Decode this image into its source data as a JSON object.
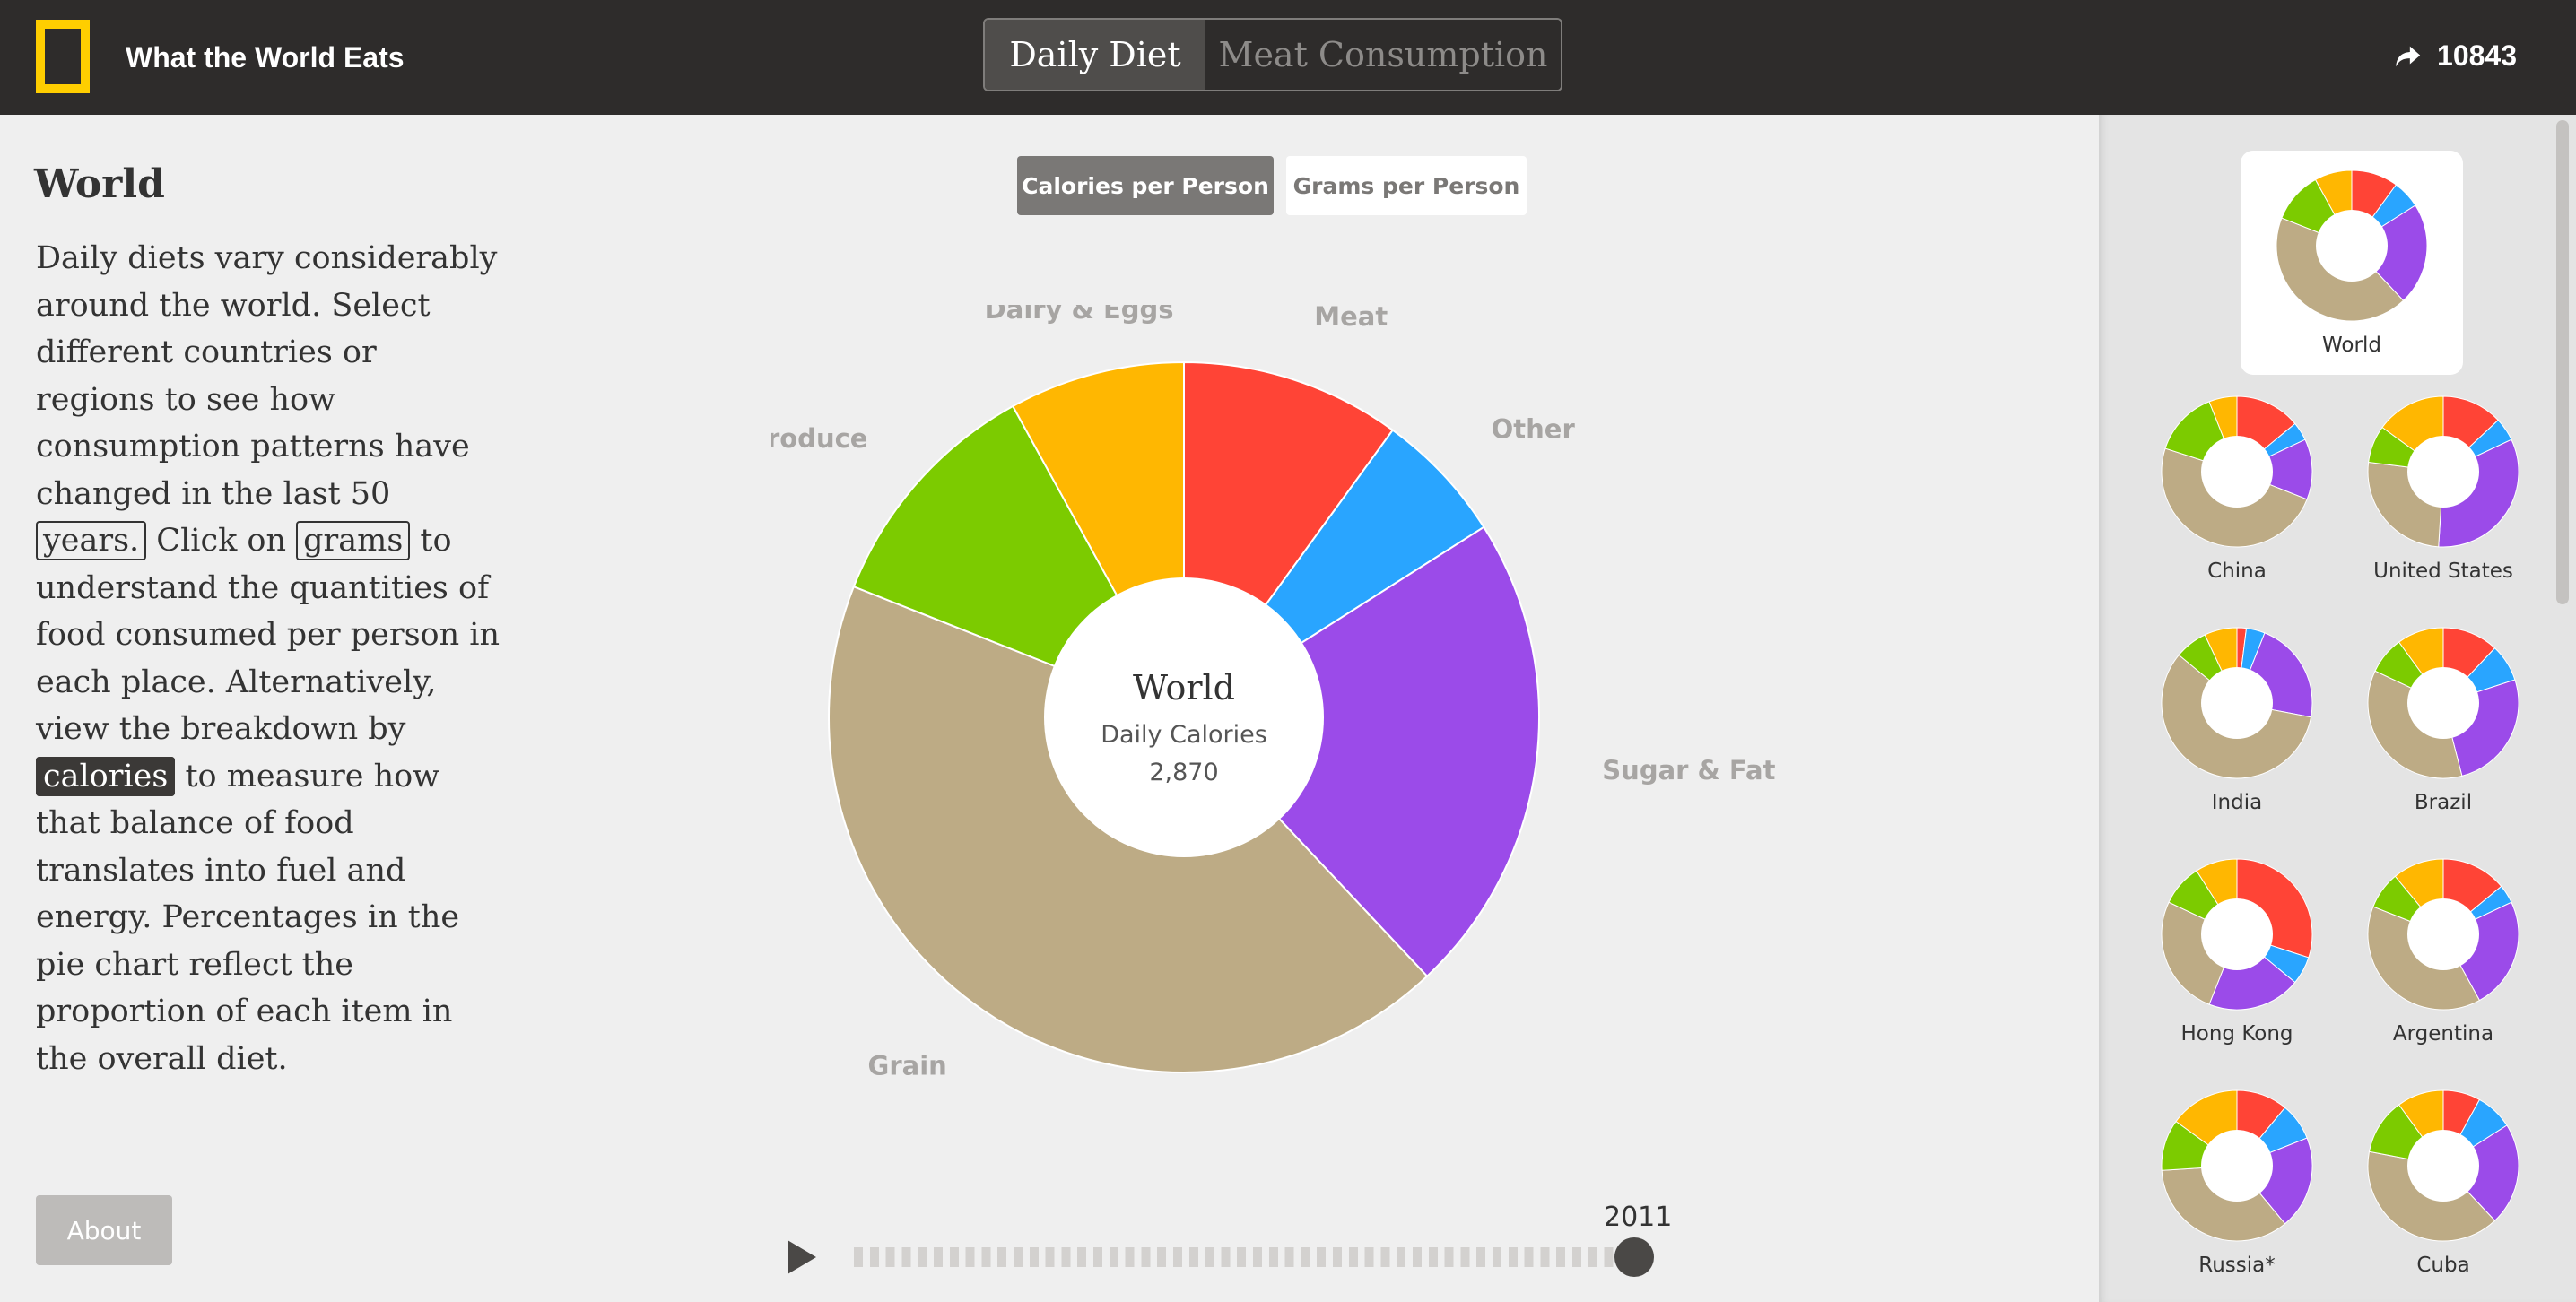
{
  "header": {
    "brand_title": "What the World Eats",
    "tabs": [
      {
        "label": "Daily Diet",
        "active": true
      },
      {
        "label": "Meat Consumption",
        "active": false
      }
    ],
    "share_count": "10843",
    "logo_color": "#ffce00"
  },
  "region": {
    "title": "World",
    "description": {
      "p1": "Daily diets vary considerably around the world. Select different countries or regions to see how consumption patterns have changed in the last 50 ",
      "years_tag": "years.",
      "p2": " Click on ",
      "grams_tag": "grams",
      "p3": " to understand the quantities of food consumed per person in each place. Alternatively, view the breakdown by ",
      "calories_tag": "calories",
      "p4": " to measure how that balance of food translates into fuel and energy. Percentages in the pie chart reflect the proportion of each item in the overall diet."
    }
  },
  "metric_toggle": {
    "calories_label": "Calories per Person",
    "grams_label": "Grams per Person",
    "selected": "calories"
  },
  "about_label": "About",
  "timeline": {
    "year": "2011",
    "play_icon": "play-icon",
    "progress": 1.0
  },
  "chart_data": {
    "type": "pie",
    "title": "World",
    "center_label": "Daily Calories",
    "center_value": "2,870",
    "slices": [
      {
        "name": "Meat",
        "value": 10,
        "color": "#ff4436"
      },
      {
        "name": "Other",
        "value": 6,
        "color": "#29a5ff"
      },
      {
        "name": "Sugar & Fat",
        "value": 22,
        "color": "#9b4be9"
      },
      {
        "name": "Grain",
        "value": 43,
        "color": "#bdab85"
      },
      {
        "name": "Produce",
        "value": 11,
        "color": "#7ccb00"
      },
      {
        "name": "Dairy & Eggs",
        "value": 8,
        "color": "#ffb701"
      }
    ]
  },
  "sidebar": {
    "items": [
      {
        "name": "World",
        "selected": true,
        "values": [
          10,
          6,
          22,
          43,
          11,
          8
        ]
      },
      {
        "name": "China",
        "values": [
          14,
          4,
          13,
          49,
          14,
          6
        ]
      },
      {
        "name": "United States",
        "values": [
          13,
          5,
          33,
          26,
          8,
          15
        ]
      },
      {
        "name": "India",
        "values": [
          2,
          4,
          22,
          58,
          7,
          7
        ]
      },
      {
        "name": "Brazil",
        "values": [
          12,
          8,
          26,
          36,
          8,
          10
        ]
      },
      {
        "name": "Hong Kong",
        "values": [
          30,
          6,
          20,
          26,
          9,
          9
        ]
      },
      {
        "name": "Argentina",
        "values": [
          14,
          4,
          24,
          39,
          8,
          11
        ]
      },
      {
        "name": "Russia*",
        "values": [
          11,
          8,
          20,
          35,
          11,
          15
        ]
      },
      {
        "name": "Cuba",
        "values": [
          8,
          8,
          22,
          40,
          12,
          10
        ]
      }
    ]
  }
}
